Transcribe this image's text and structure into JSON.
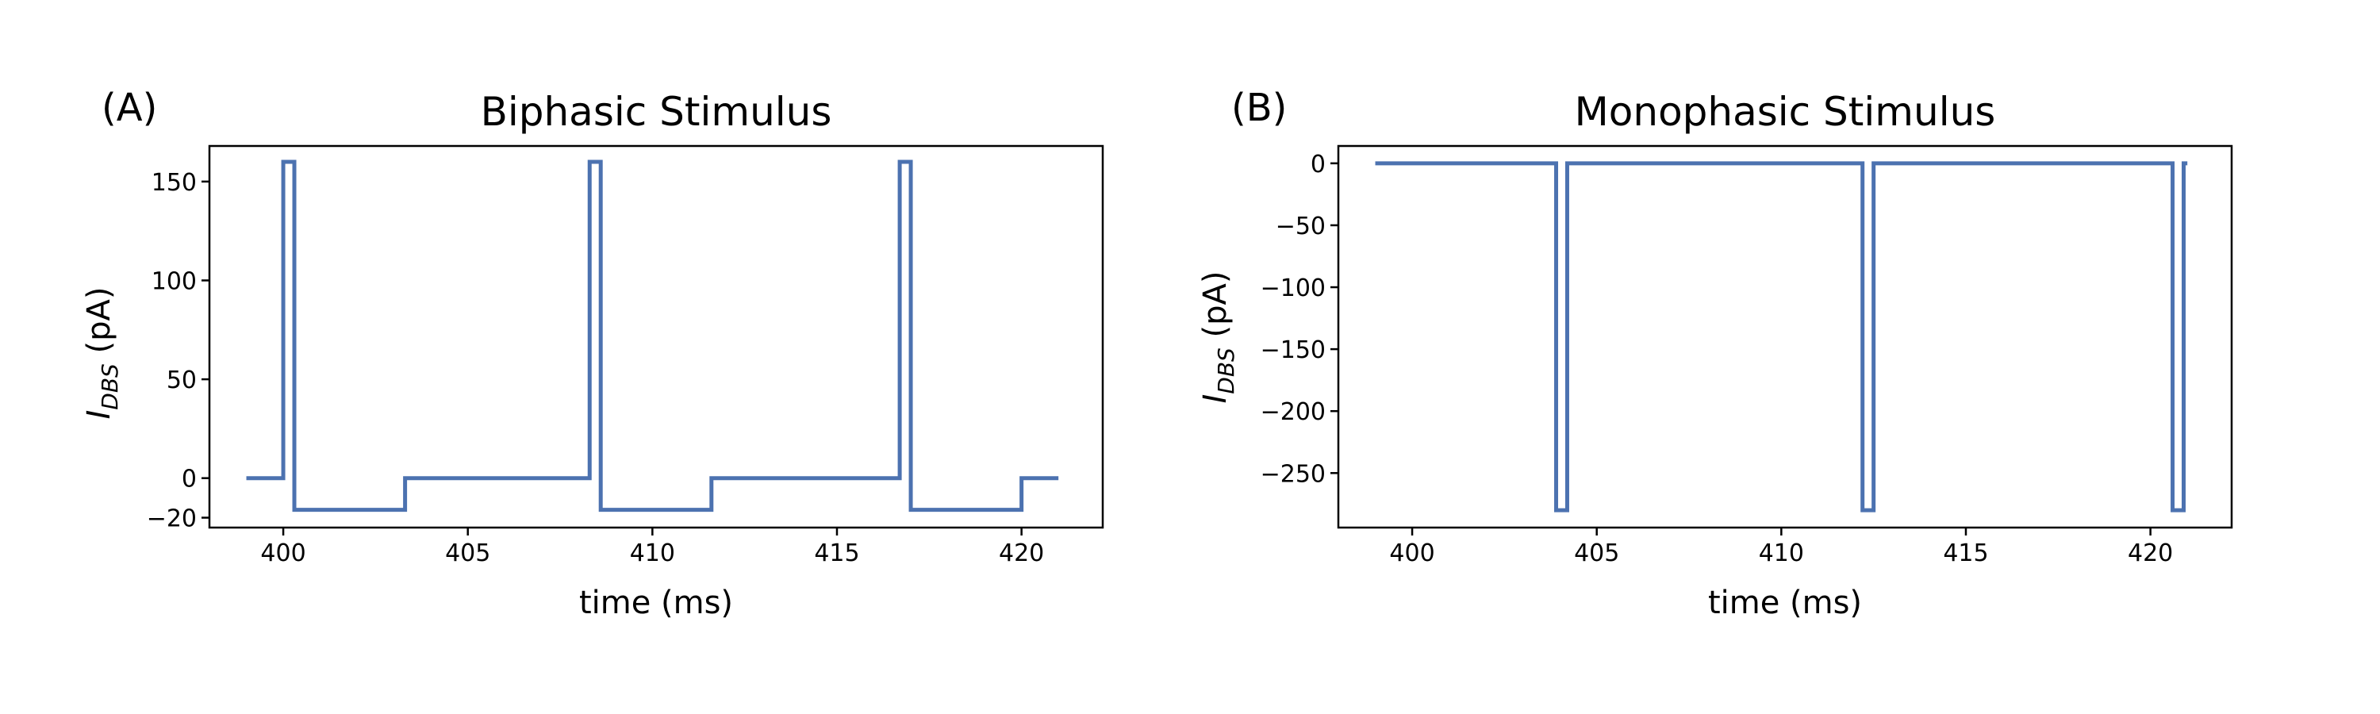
{
  "chart_data": [
    {
      "type": "line",
      "panel_label": "(A)",
      "title": "Biphasic Stimulus",
      "xlabel": "time (ms)",
      "ylabel_main": "I",
      "ylabel_sub": "DBS",
      "ylabel_unit": " (pA)",
      "xlim": [
        398,
        422.2
      ],
      "ylim": [
        -25,
        168
      ],
      "xticks": [
        400,
        405,
        410,
        415,
        420
      ],
      "xtick_labels": [
        "400",
        "405",
        "410",
        "415",
        "420"
      ],
      "yticks": [
        -20,
        0,
        50,
        100,
        150
      ],
      "ytick_labels": [
        "−20",
        "0",
        "50",
        "100",
        "150"
      ],
      "grid": false,
      "series": [
        {
          "color": "#4c72b0",
          "x": [
            399,
            400,
            400,
            400.3,
            400.3,
            403.3,
            403.3,
            408.3,
            408.3,
            408.6,
            408.6,
            411.6,
            411.6,
            416.7,
            416.7,
            417,
            417,
            420,
            420,
            421
          ],
          "y": [
            0,
            0,
            160,
            160,
            -16,
            -16,
            0,
            0,
            160,
            160,
            -16,
            -16,
            0,
            0,
            160,
            160,
            -16,
            -16,
            0,
            0
          ]
        }
      ]
    },
    {
      "type": "line",
      "panel_label": "(B)",
      "title": "Monophasic Stimulus",
      "xlabel": "time (ms)",
      "ylabel_main": "I",
      "ylabel_sub": "DBS",
      "ylabel_unit": " (pA)",
      "xlim": [
        398,
        422.2
      ],
      "ylim": [
        -294,
        14
      ],
      "xticks": [
        400,
        405,
        410,
        415,
        420
      ],
      "xtick_labels": [
        "400",
        "405",
        "410",
        "415",
        "420"
      ],
      "yticks": [
        -250,
        -200,
        -150,
        -100,
        -50,
        0
      ],
      "ytick_labels": [
        "−250",
        "−200",
        "−150",
        "−100",
        "−50",
        "0"
      ],
      "grid": false,
      "series": [
        {
          "color": "#4c72b0",
          "x": [
            399,
            403.9,
            403.9,
            404.2,
            404.2,
            412.2,
            412.2,
            412.5,
            412.5,
            420.6,
            420.6,
            420.9,
            420.9,
            421
          ],
          "y": [
            0,
            0,
            -280,
            -280,
            0,
            0,
            -280,
            -280,
            0,
            0,
            -280,
            -280,
            0,
            0
          ]
        }
      ]
    }
  ]
}
